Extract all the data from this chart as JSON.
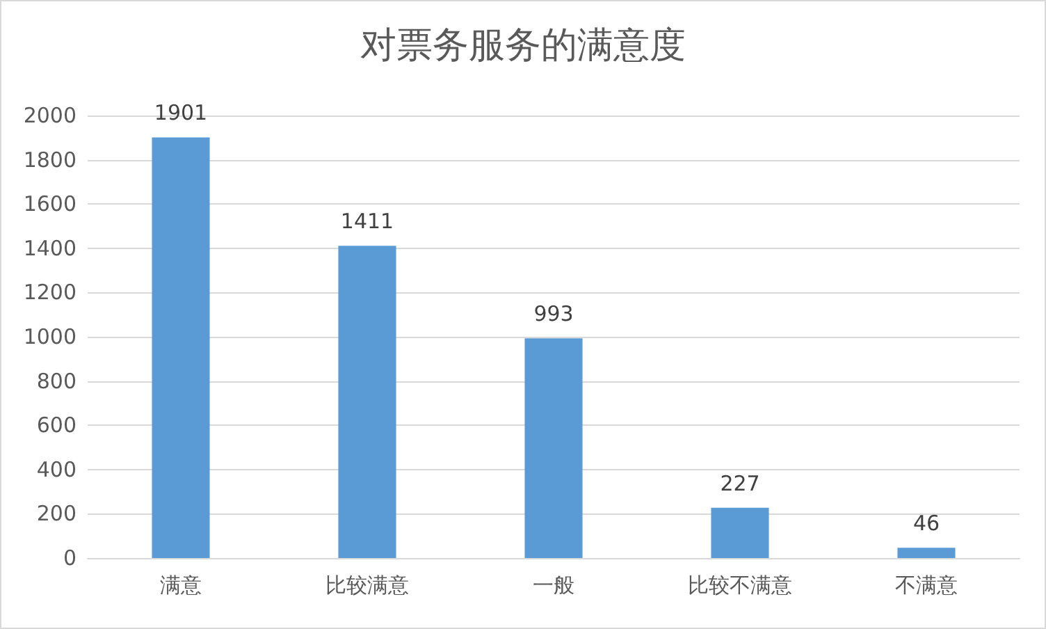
{
  "chart_data": {
    "type": "bar",
    "title": "对票务服务的满意度",
    "categories": [
      "满意",
      "比较满意",
      "一般",
      "比较不满意",
      "不满意"
    ],
    "values": [
      1901,
      1411,
      993,
      227,
      46
    ],
    "color": "#5b9bd5",
    "ylim": [
      0,
      2000
    ],
    "yticks": [
      0,
      200,
      400,
      600,
      800,
      1000,
      1200,
      1400,
      1600,
      1800,
      2000
    ],
    "grid": "y",
    "data_labels": true
  }
}
